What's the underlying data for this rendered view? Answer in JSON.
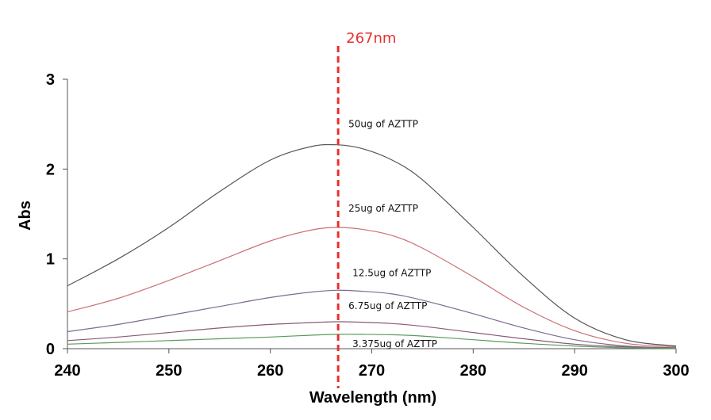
{
  "chart_data": {
    "type": "line",
    "title": "",
    "xlabel": "Wavelength (nm)",
    "ylabel": "Abs",
    "xlim": [
      240,
      300
    ],
    "ylim": [
      0,
      3
    ],
    "xticks": [
      "240",
      "250",
      "260",
      "270",
      "280",
      "290",
      "300"
    ],
    "yticks": [
      "0",
      "1",
      "2",
      "3"
    ],
    "grid": false,
    "marker": {
      "x": 267,
      "label": "267nm",
      "color": "#e8302f"
    },
    "x": [
      240,
      245,
      250,
      255,
      260,
      264,
      266.5,
      269,
      272,
      275,
      280,
      285,
      290,
      295,
      300
    ],
    "series": [
      {
        "name": "50ug of AZTTP",
        "color": "#555555",
        "values": [
          0.7,
          1.0,
          1.35,
          1.75,
          2.1,
          2.25,
          2.27,
          2.23,
          2.1,
          1.88,
          1.35,
          0.8,
          0.34,
          0.1,
          0.03
        ]
      },
      {
        "name": "25ug of AZTTP",
        "color": "#cc6f74",
        "values": [
          0.41,
          0.56,
          0.76,
          0.98,
          1.2,
          1.32,
          1.35,
          1.33,
          1.26,
          1.12,
          0.8,
          0.46,
          0.2,
          0.06,
          0.02
        ]
      },
      {
        "name": "12.5ug of  AZTTP",
        "color": "#7d6a93",
        "values": [
          0.19,
          0.27,
          0.37,
          0.47,
          0.57,
          0.63,
          0.65,
          0.64,
          0.61,
          0.54,
          0.39,
          0.23,
          0.1,
          0.03,
          0.01
        ]
      },
      {
        "name": "6.75ug of AZTTP",
        "color": "#8a5a78",
        "values": [
          0.09,
          0.13,
          0.18,
          0.23,
          0.27,
          0.29,
          0.3,
          0.295,
          0.28,
          0.25,
          0.18,
          0.11,
          0.05,
          0.02,
          0.01
        ]
      },
      {
        "name": "3.375ug of AZTTP",
        "color": "#5a9a5a",
        "values": [
          0.05,
          0.07,
          0.09,
          0.11,
          0.13,
          0.15,
          0.16,
          0.16,
          0.155,
          0.14,
          0.1,
          0.06,
          0.03,
          0.01,
          0.005
        ]
      }
    ]
  }
}
